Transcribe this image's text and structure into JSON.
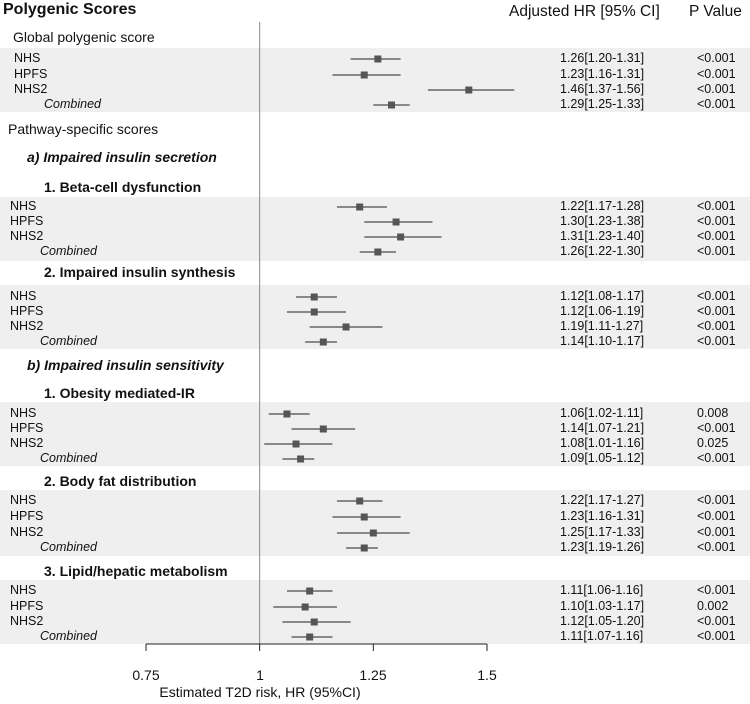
{
  "header": {
    "title": "Polygenic Scores",
    "col_hr": "Adjusted HR [95% CI]",
    "col_p": "P Value"
  },
  "sections": {
    "global": "Global polygenic score",
    "pathway": "Pathway-specific scores",
    "sub_a": "a) Impaired insulin secretion",
    "sub_b": "b) Impaired insulin sensitivity",
    "g1": "1. Beta-cell dysfunction",
    "g2": "2. Impaired insulin synthesis",
    "g3": "1. Obesity mediated-IR",
    "g4": "2. Body fat distribution",
    "g5": "3. Lipid/hepatic metabolism"
  },
  "chart_data": {
    "type": "forest",
    "xlabel": "Estimated T2D risk, HR (95%CI)",
    "xlim": [
      0.75,
      1.5
    ],
    "reference_line": 1,
    "ticks": [
      "0.75",
      "1",
      "1.25",
      "1.5"
    ],
    "groups": [
      {
        "name": "Global polygenic score",
        "rows": [
          {
            "label": "NHS",
            "hr": 1.26,
            "lo": 1.2,
            "hi": 1.31,
            "text": "1.26[1.20-1.31]",
            "p": "<0.001"
          },
          {
            "label": "HPFS",
            "hr": 1.23,
            "lo": 1.16,
            "hi": 1.31,
            "text": "1.23[1.16-1.31]",
            "p": "<0.001"
          },
          {
            "label": "NHS2",
            "hr": 1.46,
            "lo": 1.37,
            "hi": 1.56,
            "text": "1.46[1.37-1.56]",
            "p": "<0.001"
          },
          {
            "label": "Combined",
            "hr": 1.29,
            "lo": 1.25,
            "hi": 1.33,
            "text": "1.29[1.25-1.33]",
            "p": "<0.001"
          }
        ]
      },
      {
        "name": "1. Beta-cell dysfunction",
        "rows": [
          {
            "label": "NHS",
            "hr": 1.22,
            "lo": 1.17,
            "hi": 1.28,
            "text": "1.22[1.17-1.28]",
            "p": "<0.001"
          },
          {
            "label": "HPFS",
            "hr": 1.3,
            "lo": 1.23,
            "hi": 1.38,
            "text": "1.30[1.23-1.38]",
            "p": "<0.001"
          },
          {
            "label": "NHS2",
            "hr": 1.31,
            "lo": 1.23,
            "hi": 1.4,
            "text": "1.31[1.23-1.40]",
            "p": "<0.001"
          },
          {
            "label": "Combined",
            "hr": 1.26,
            "lo": 1.22,
            "hi": 1.3,
            "text": "1.26[1.22-1.30]",
            "p": "<0.001"
          }
        ]
      },
      {
        "name": "2. Impaired insulin synthesis",
        "rows": [
          {
            "label": "NHS",
            "hr": 1.12,
            "lo": 1.08,
            "hi": 1.17,
            "text": "1.12[1.08-1.17]",
            "p": "<0.001"
          },
          {
            "label": "HPFS",
            "hr": 1.12,
            "lo": 1.06,
            "hi": 1.19,
            "text": "1.12[1.06-1.19]",
            "p": "<0.001"
          },
          {
            "label": "NHS2",
            "hr": 1.19,
            "lo": 1.11,
            "hi": 1.27,
            "text": "1.19[1.11-1.27]",
            "p": "<0.001"
          },
          {
            "label": "Combined",
            "hr": 1.14,
            "lo": 1.1,
            "hi": 1.17,
            "text": "1.14[1.10-1.17]",
            "p": "<0.001"
          }
        ]
      },
      {
        "name": "1. Obesity mediated-IR",
        "rows": [
          {
            "label": "NHS",
            "hr": 1.06,
            "lo": 1.02,
            "hi": 1.11,
            "text": "1.06[1.02-1.11]",
            "p": "0.008"
          },
          {
            "label": "HPFS",
            "hr": 1.14,
            "lo": 1.07,
            "hi": 1.21,
            "text": "1.14[1.07-1.21]",
            "p": "<0.001"
          },
          {
            "label": "NHS2",
            "hr": 1.08,
            "lo": 1.01,
            "hi": 1.16,
            "text": "1.08[1.01-1.16]",
            "p": "0.025"
          },
          {
            "label": "Combined",
            "hr": 1.09,
            "lo": 1.05,
            "hi": 1.12,
            "text": "1.09[1.05-1.12]",
            "p": "<0.001"
          }
        ]
      },
      {
        "name": "2. Body fat distribution",
        "rows": [
          {
            "label": "NHS",
            "hr": 1.22,
            "lo": 1.17,
            "hi": 1.27,
            "text": "1.22[1.17-1.27]",
            "p": "<0.001"
          },
          {
            "label": "HPFS",
            "hr": 1.23,
            "lo": 1.16,
            "hi": 1.31,
            "text": "1.23[1.16-1.31]",
            "p": "<0.001"
          },
          {
            "label": "NHS2",
            "hr": 1.25,
            "lo": 1.17,
            "hi": 1.33,
            "text": "1.25[1.17-1.33]",
            "p": "<0.001"
          },
          {
            "label": "Combined",
            "hr": 1.23,
            "lo": 1.19,
            "hi": 1.26,
            "text": "1.23[1.19-1.26]",
            "p": "<0.001"
          }
        ]
      },
      {
        "name": "3. Lipid/hepatic metabolism",
        "rows": [
          {
            "label": "NHS",
            "hr": 1.11,
            "lo": 1.06,
            "hi": 1.16,
            "text": "1.11[1.06-1.16]",
            "p": "<0.001"
          },
          {
            "label": "HPFS",
            "hr": 1.1,
            "lo": 1.03,
            "hi": 1.17,
            "text": "1.10[1.03-1.17]",
            "p": "0.002"
          },
          {
            "label": "NHS2",
            "hr": 1.12,
            "lo": 1.05,
            "hi": 1.2,
            "text": "1.12[1.05-1.20]",
            "p": "<0.001"
          },
          {
            "label": "Combined",
            "hr": 1.11,
            "lo": 1.07,
            "hi": 1.16,
            "text": "1.11[1.07-1.16]",
            "p": "<0.001"
          }
        ]
      }
    ]
  },
  "colors": {
    "band": "#efefef",
    "marker": "#555555",
    "line": "#222222"
  }
}
